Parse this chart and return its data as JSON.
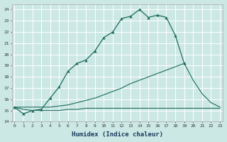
{
  "xlabel": "Humidex (Indice chaleur)",
  "bg_color": "#cce8e5",
  "grid_color": "#ffffff",
  "line_color": "#1a6b5a",
  "xlim": [
    0,
    23
  ],
  "ylim": [
    14,
    24.5
  ],
  "curve1_x": [
    0,
    1,
    2,
    3,
    4,
    5,
    6,
    7,
    8,
    9,
    10,
    11,
    12,
    13,
    14,
    15,
    16,
    17,
    18,
    19
  ],
  "curve1_y": [
    15.3,
    14.7,
    15.0,
    15.1,
    16.1,
    17.1,
    18.5,
    19.2,
    19.5,
    20.3,
    21.5,
    22.0,
    23.2,
    23.4,
    24.0,
    23.3,
    23.5,
    23.3,
    21.7,
    19.2
  ],
  "curve2_x": [
    0,
    1,
    2,
    3,
    4,
    5,
    6,
    7,
    8,
    9,
    10,
    11,
    12,
    13,
    14,
    15,
    16,
    17,
    18,
    19,
    20,
    21,
    22,
    23
  ],
  "curve2_y": [
    15.3,
    15.3,
    15.3,
    15.3,
    15.3,
    15.4,
    15.5,
    15.7,
    15.9,
    16.1,
    16.4,
    16.7,
    17.0,
    17.4,
    17.7,
    18.0,
    18.3,
    18.6,
    18.9,
    19.2,
    17.7,
    16.5,
    15.7,
    15.3
  ],
  "curve3_x": [
    0,
    1,
    2,
    3,
    4,
    5,
    6,
    7,
    8,
    9,
    10,
    11,
    12,
    13,
    14,
    15,
    16,
    17,
    18,
    19,
    20,
    21,
    22,
    23
  ],
  "curve3_y": [
    15.3,
    15.1,
    15.0,
    15.0,
    15.0,
    15.0,
    15.1,
    15.1,
    15.2,
    15.2,
    15.2,
    15.2,
    15.2,
    15.2,
    15.2,
    15.2,
    15.2,
    15.2,
    15.2,
    15.2,
    15.2,
    15.2,
    15.2,
    15.2
  ]
}
